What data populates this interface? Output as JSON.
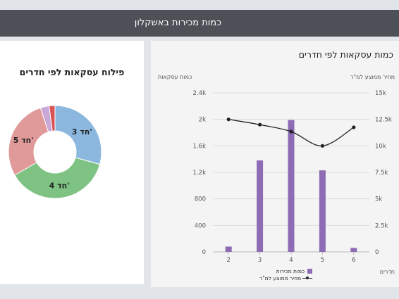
{
  "header": {
    "title": "כמות מכירות באשקלון"
  },
  "donut": {
    "title": "פילוח עסקאות לפי חדרים",
    "segments": [
      {
        "label": "3 חד'",
        "value": 29,
        "color": "#8cb8e0"
      },
      {
        "label": "4 חד'",
        "value": 37,
        "color": "#7ec383"
      },
      {
        "label": "5 חד'",
        "value": 28,
        "color": "#e19a9a"
      },
      {
        "label": "",
        "value": 3,
        "color": "#c9a8d8"
      },
      {
        "label": "",
        "value": 2,
        "color": "#d95454"
      }
    ]
  },
  "chart": {
    "title": "כמות עסקאות לפי חדרים",
    "left_axis_name": "כמות עסקאות",
    "right_axis_name": "מחיר ממוצע למ\"ר",
    "x_axis_name": "חדרים",
    "left_ticks": [
      "0",
      "400",
      "800",
      "1.2k",
      "1.6k",
      "2k",
      "2.4k"
    ],
    "right_ticks": [
      "0",
      "2.5k",
      "5k",
      "7.5k",
      "10k",
      "12.5k",
      "15k"
    ],
    "legend": {
      "bars": "כמות מכירות",
      "line": "מחיר ממוצע למ\"ר"
    },
    "colors": {
      "bars": "#8e6bb5",
      "line": "#222222"
    }
  },
  "chart_data": {
    "type": "bar",
    "title": "כמות עסקאות לפי חדרים",
    "xlabel": "חדרים",
    "ylabel": "כמות עסקאות",
    "y2label": "מחיר ממוצע למ\"ר",
    "categories": [
      "2",
      "3",
      "4",
      "5",
      "6"
    ],
    "ylim": [
      0,
      2400
    ],
    "y2lim": [
      0,
      15000
    ],
    "series": [
      {
        "name": "כמות מכירות",
        "type": "bar",
        "axis": "left",
        "values": [
          80,
          1380,
          1990,
          1230,
          60
        ]
      },
      {
        "name": "מחיר ממוצע למ\"ר",
        "type": "line",
        "axis": "right",
        "values": [
          12500,
          12000,
          11350,
          10000,
          11750
        ]
      }
    ]
  }
}
